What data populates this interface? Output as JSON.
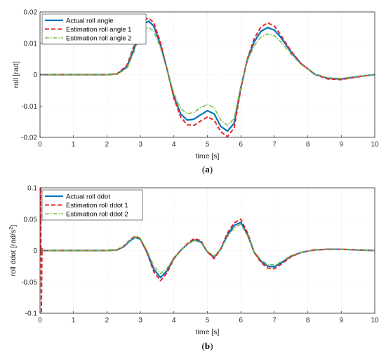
{
  "chart_data": [
    {
      "type": "line",
      "caption_open": "(",
      "caption_letter": "a",
      "caption_close": ")",
      "xlabel": "time [s]",
      "ylabel": "roll [rad]",
      "xlim": [
        0,
        10
      ],
      "ylim": [
        -0.02,
        0.02
      ],
      "xticks": [
        0,
        1,
        2,
        3,
        4,
        5,
        6,
        7,
        8,
        9,
        10
      ],
      "yticks": [
        -0.02,
        -0.01,
        0,
        0.01,
        0.02
      ],
      "ytick_labels": [
        "-0.02",
        "-0.01",
        "0",
        "0.01",
        "0.02"
      ],
      "grid": true,
      "legend_position": "top-left",
      "series": [
        {
          "name": "Actual roll angle",
          "color": "#0072BD",
          "style": "solid",
          "x": [
            0,
            2,
            2.3,
            2.6,
            2.8,
            3.0,
            3.1,
            3.25,
            3.4,
            3.6,
            3.8,
            4.0,
            4.2,
            4.4,
            4.6,
            4.8,
            5.0,
            5.2,
            5.4,
            5.6,
            5.8,
            6.0,
            6.2,
            6.4,
            6.6,
            6.8,
            7.0,
            7.2,
            7.5,
            7.8,
            8.2,
            8.6,
            9.0,
            9.5,
            10
          ],
          "y": [
            0,
            0,
            0.0002,
            0.0025,
            0.008,
            0.0145,
            0.0163,
            0.017,
            0.0155,
            0.0095,
            0.0015,
            -0.007,
            -0.0125,
            -0.0145,
            -0.0142,
            -0.0128,
            -0.0115,
            -0.0125,
            -0.0165,
            -0.018,
            -0.0155,
            -0.004,
            0.005,
            0.0105,
            0.0138,
            0.015,
            0.0142,
            0.0118,
            0.0072,
            0.0035,
            0.0002,
            -0.0012,
            -0.0014,
            -0.0006,
            0
          ]
        },
        {
          "name": "Estimation roll angle 1",
          "color": "#E8252A",
          "style": "dashed",
          "x": [
            0,
            2,
            2.3,
            2.6,
            2.8,
            3.0,
            3.1,
            3.25,
            3.4,
            3.6,
            3.8,
            4.0,
            4.2,
            4.4,
            4.6,
            4.8,
            5.0,
            5.2,
            5.4,
            5.6,
            5.8,
            6.0,
            6.2,
            6.4,
            6.6,
            6.8,
            7.0,
            7.2,
            7.5,
            7.8,
            8.2,
            8.6,
            9.0,
            9.5,
            10
          ],
          "y": [
            0,
            0,
            0.0002,
            0.003,
            0.009,
            0.0155,
            0.0175,
            0.018,
            0.0165,
            0.0102,
            0.0015,
            -0.0075,
            -0.0135,
            -0.016,
            -0.0162,
            -0.0148,
            -0.0135,
            -0.0145,
            -0.0182,
            -0.0198,
            -0.017,
            -0.0045,
            0.0052,
            0.0115,
            0.0152,
            0.0165,
            0.0155,
            0.0125,
            0.0075,
            0.0035,
            0.0001,
            -0.0014,
            -0.0016,
            -0.0007,
            0
          ]
        },
        {
          "name": "Estimation roll angle 2",
          "color": "#77C043",
          "style": "dashdot",
          "x": [
            0,
            2,
            2.3,
            2.6,
            2.8,
            3.0,
            3.1,
            3.25,
            3.4,
            3.6,
            3.8,
            4.0,
            4.2,
            4.4,
            4.6,
            4.8,
            5.0,
            5.2,
            5.4,
            5.6,
            5.8,
            6.0,
            6.2,
            6.4,
            6.6,
            6.8,
            7.0,
            7.2,
            7.5,
            7.8,
            8.2,
            8.6,
            9.0,
            9.5,
            10
          ],
          "y": [
            0,
            0,
            0.0001,
            0.002,
            0.007,
            0.0128,
            0.0145,
            0.015,
            0.0138,
            0.0085,
            0.0012,
            -0.006,
            -0.0108,
            -0.0125,
            -0.012,
            -0.0105,
            -0.0095,
            -0.0105,
            -0.0145,
            -0.0162,
            -0.014,
            -0.0035,
            0.0045,
            0.0092,
            0.012,
            0.013,
            0.0124,
            0.0104,
            0.0065,
            0.0032,
            0.0002,
            -0.001,
            -0.0012,
            -0.0005,
            0
          ]
        }
      ]
    },
    {
      "type": "line",
      "caption_open": "(",
      "caption_letter": "b",
      "caption_close": ")",
      "xlabel": "time [s]",
      "ylabel_main": "roll ddot [rad/s",
      "ylabel_sup": "2",
      "ylabel_end": "]",
      "xlim": [
        0,
        10
      ],
      "ylim": [
        -0.1,
        0.1
      ],
      "xticks": [
        0,
        1,
        2,
        3,
        4,
        5,
        6,
        7,
        8,
        9,
        10
      ],
      "yticks": [
        -0.1,
        -0.05,
        0,
        0.05,
        0.1
      ],
      "ytick_labels": [
        "-0.1",
        "-0.05",
        "0",
        "0.05",
        "0.1"
      ],
      "grid": true,
      "legend_position": "top-left",
      "series": [
        {
          "name": "Actual roll ddot",
          "color": "#0072BD",
          "style": "solid",
          "x": [
            0,
            2,
            2.3,
            2.5,
            2.7,
            2.85,
            3.0,
            3.2,
            3.4,
            3.6,
            3.8,
            4.0,
            4.2,
            4.4,
            4.6,
            4.8,
            5.0,
            5.2,
            5.4,
            5.6,
            5.8,
            6.0,
            6.2,
            6.4,
            6.6,
            6.8,
            7.0,
            7.2,
            7.5,
            7.8,
            8.2,
            8.6,
            9.0,
            9.5,
            10
          ],
          "y": [
            0,
            0,
            0.001,
            0.006,
            0.016,
            0.021,
            0.018,
            -0.003,
            -0.03,
            -0.043,
            -0.032,
            -0.012,
            0,
            0.01,
            0.017,
            0.014,
            -0.002,
            -0.011,
            0.002,
            0.025,
            0.04,
            0.045,
            0.025,
            -0.003,
            -0.017,
            -0.025,
            -0.026,
            -0.02,
            -0.009,
            -0.003,
            0.001,
            0.002,
            0.002,
            0.001,
            0
          ]
        },
        {
          "name": "Estimation roll ddot 1",
          "color": "#E8252A",
          "style": "dashed",
          "x": [
            0,
            0.02,
            0.04,
            0.06,
            0.1,
            2,
            2.3,
            2.5,
            2.7,
            2.85,
            3.0,
            3.2,
            3.4,
            3.6,
            3.8,
            4.0,
            4.2,
            4.4,
            4.6,
            4.8,
            5.0,
            5.2,
            5.4,
            5.6,
            5.8,
            6.0,
            6.2,
            6.4,
            6.6,
            6.8,
            7.0,
            7.2,
            7.5,
            7.8,
            8.2,
            8.6,
            9.0,
            9.5,
            10
          ],
          "y": [
            0,
            0.1,
            -0.1,
            0.003,
            0,
            0,
            0.001,
            0.007,
            0.018,
            0.023,
            0.019,
            -0.004,
            -0.034,
            -0.048,
            -0.035,
            -0.013,
            0,
            0.011,
            0.019,
            0.016,
            -0.002,
            -0.013,
            0.003,
            0.028,
            0.044,
            0.05,
            0.028,
            -0.003,
            -0.019,
            -0.028,
            -0.029,
            -0.022,
            -0.01,
            -0.003,
            0.001,
            0.002,
            0.002,
            0.001,
            0
          ]
        },
        {
          "name": "Estimation roll ddot 2",
          "color": "#77C043",
          "style": "dashdot",
          "x": [
            0,
            2,
            2.3,
            2.5,
            2.7,
            2.85,
            3.0,
            3.2,
            3.4,
            3.6,
            3.8,
            4.0,
            4.2,
            4.4,
            4.6,
            4.8,
            5.0,
            5.2,
            5.4,
            5.6,
            5.8,
            6.0,
            6.2,
            6.4,
            6.6,
            6.8,
            7.0,
            7.2,
            7.5,
            7.8,
            8.2,
            8.6,
            9.0,
            9.5,
            10
          ],
          "y": [
            0,
            0,
            0.001,
            0.007,
            0.017,
            0.022,
            0.019,
            0,
            -0.025,
            -0.037,
            -0.028,
            -0.011,
            0,
            0.01,
            0.016,
            0.013,
            -0.001,
            -0.009,
            0.002,
            0.022,
            0.036,
            0.042,
            0.023,
            -0.002,
            -0.015,
            -0.022,
            -0.023,
            -0.018,
            -0.008,
            -0.003,
            0.001,
            0.002,
            0.002,
            0.001,
            0
          ]
        }
      ]
    }
  ]
}
